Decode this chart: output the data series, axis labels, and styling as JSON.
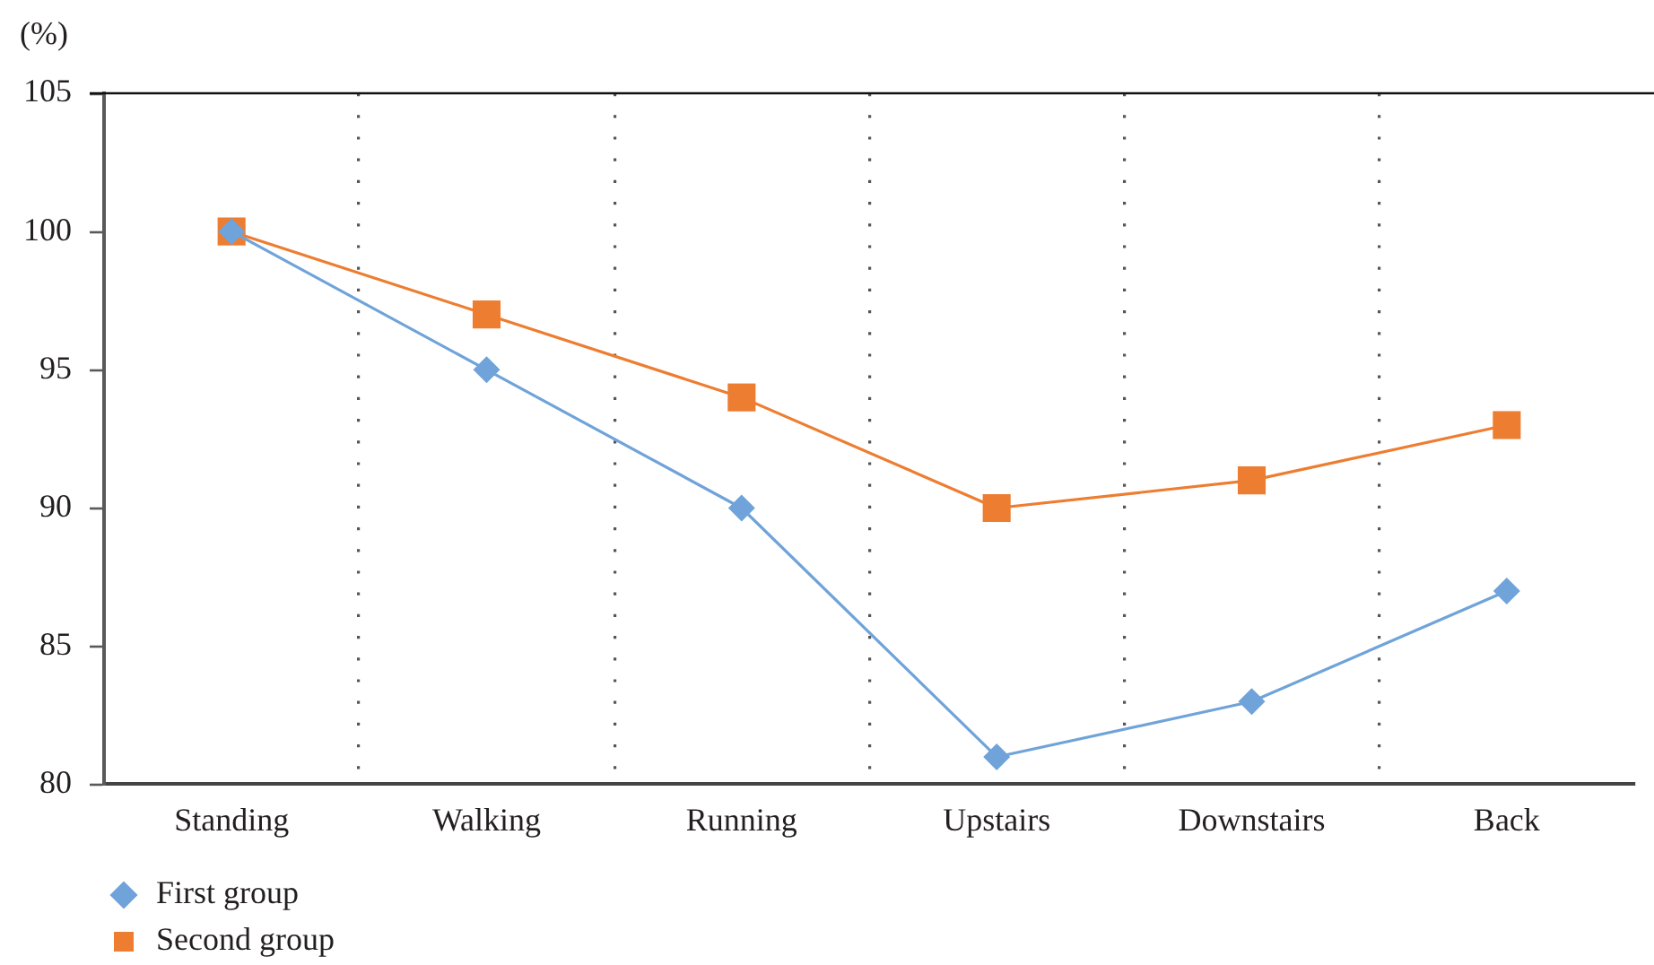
{
  "chart_data": {
    "type": "line",
    "ylabel": "(%)",
    "categories": [
      "Standing",
      "Walking",
      "Running",
      "Upstairs",
      "Downstairs",
      "Back"
    ],
    "series": [
      {
        "name": "First group",
        "color": "#6fa3d9",
        "marker": "diamond",
        "values": [
          100,
          95,
          90,
          81,
          83,
          87
        ]
      },
      {
        "name": "Second group",
        "color": "#ed7d31",
        "marker": "square",
        "values": [
          100,
          97,
          94,
          90,
          91,
          93
        ]
      }
    ],
    "ylim": [
      80,
      105
    ],
    "yticks": [
      80,
      85,
      90,
      95,
      100,
      105
    ],
    "grid": "x",
    "legend": "bottom left",
    "line_style": "solid"
  }
}
